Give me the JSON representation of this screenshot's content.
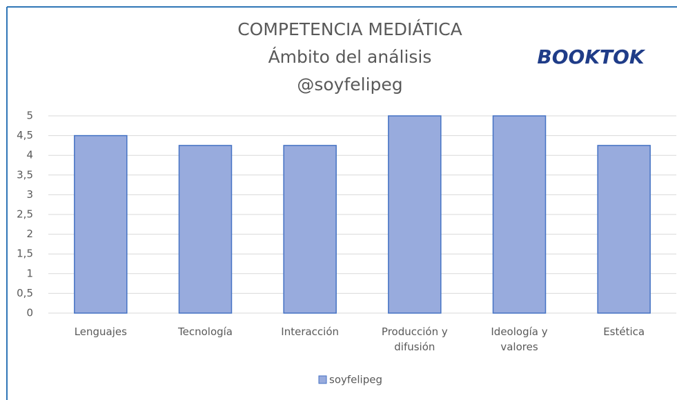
{
  "chart_data": {
    "type": "bar",
    "title": "COMPETENCIA MEDIÁTICA",
    "subtitle": "Ámbito del análisis",
    "author": "@soyfelipeg",
    "logo": "BOOKTOK",
    "categories": [
      "Lenguajes",
      "Tecnología",
      "Interacción",
      "Producción y difusión",
      "Ideología y valores",
      "Estética"
    ],
    "series": [
      {
        "name": "soyfelipeg",
        "color": "#98abdd",
        "values": [
          4.5,
          4.25,
          4.25,
          5,
          5,
          4.25
        ]
      }
    ],
    "ylim": [
      0,
      5
    ],
    "yticks": [
      0,
      {
        "value": 0.5,
        "label": "0,5"
      },
      1,
      {
        "value": 1.5,
        "label": "1,5"
      },
      2,
      {
        "value": 2.5,
        "label": "2,5"
      },
      3,
      {
        "value": 3.5,
        "label": "3,5"
      },
      4,
      {
        "value": 4.5,
        "label": "4,5"
      },
      5
    ],
    "grid": true,
    "legend": "bottom"
  }
}
